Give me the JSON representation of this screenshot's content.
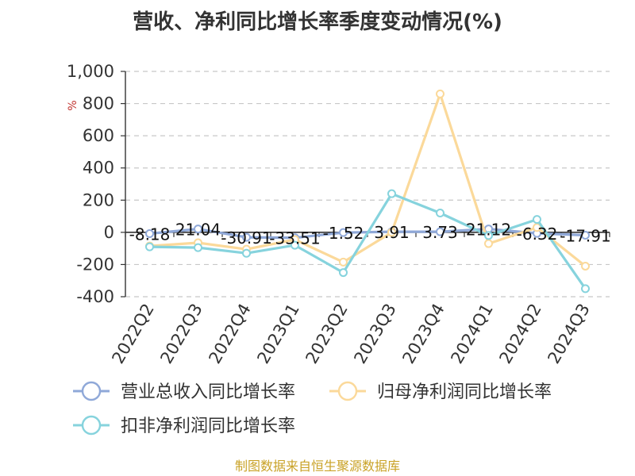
{
  "chart_data": {
    "type": "line",
    "title": "营收、净利同比增长率季度变动情况(%)",
    "y_unit": "%",
    "categories": [
      "2022Q2",
      "2022Q3",
      "2022Q4",
      "2023Q1",
      "2023Q2",
      "2023Q3",
      "2023Q4",
      "2024Q1",
      "2024Q2",
      "2024Q3"
    ],
    "ylim": [
      -400,
      1000
    ],
    "yticks": [
      -400,
      -200,
      0,
      200,
      400,
      600,
      800,
      1000
    ],
    "ytick_labels": [
      "-400",
      "-200",
      "0",
      "200",
      "400",
      "600",
      "800",
      "1,000"
    ],
    "grid": true,
    "legend_position": "bottom",
    "series": [
      {
        "name": "营业总收入同比增长率",
        "color": "#8fa8d8",
        "values": [
          -8.18,
          21.04,
          -30.91,
          -33.51,
          -1.52,
          3.91,
          3.73,
          21.12,
          -6.32,
          -17.91
        ],
        "labels": [
          "-8.18",
          "21.04",
          "-30.91",
          "-33.51",
          "-1.52",
          "3.91",
          "3.73",
          "21.12",
          "-6.32",
          "-17.91"
        ]
      },
      {
        "name": "归母净利润同比增长率",
        "color": "#fbd99a",
        "values": [
          -85,
          -65,
          -105,
          -45,
          -185,
          0,
          860,
          -70,
          30,
          -210
        ]
      },
      {
        "name": "扣非净利润同比增长率",
        "color": "#86d3dd",
        "values": [
          -90,
          -95,
          -130,
          -80,
          -250,
          240,
          120,
          -20,
          80,
          -350
        ]
      }
    ]
  },
  "source": "制图数据来自恒生聚源数据库"
}
